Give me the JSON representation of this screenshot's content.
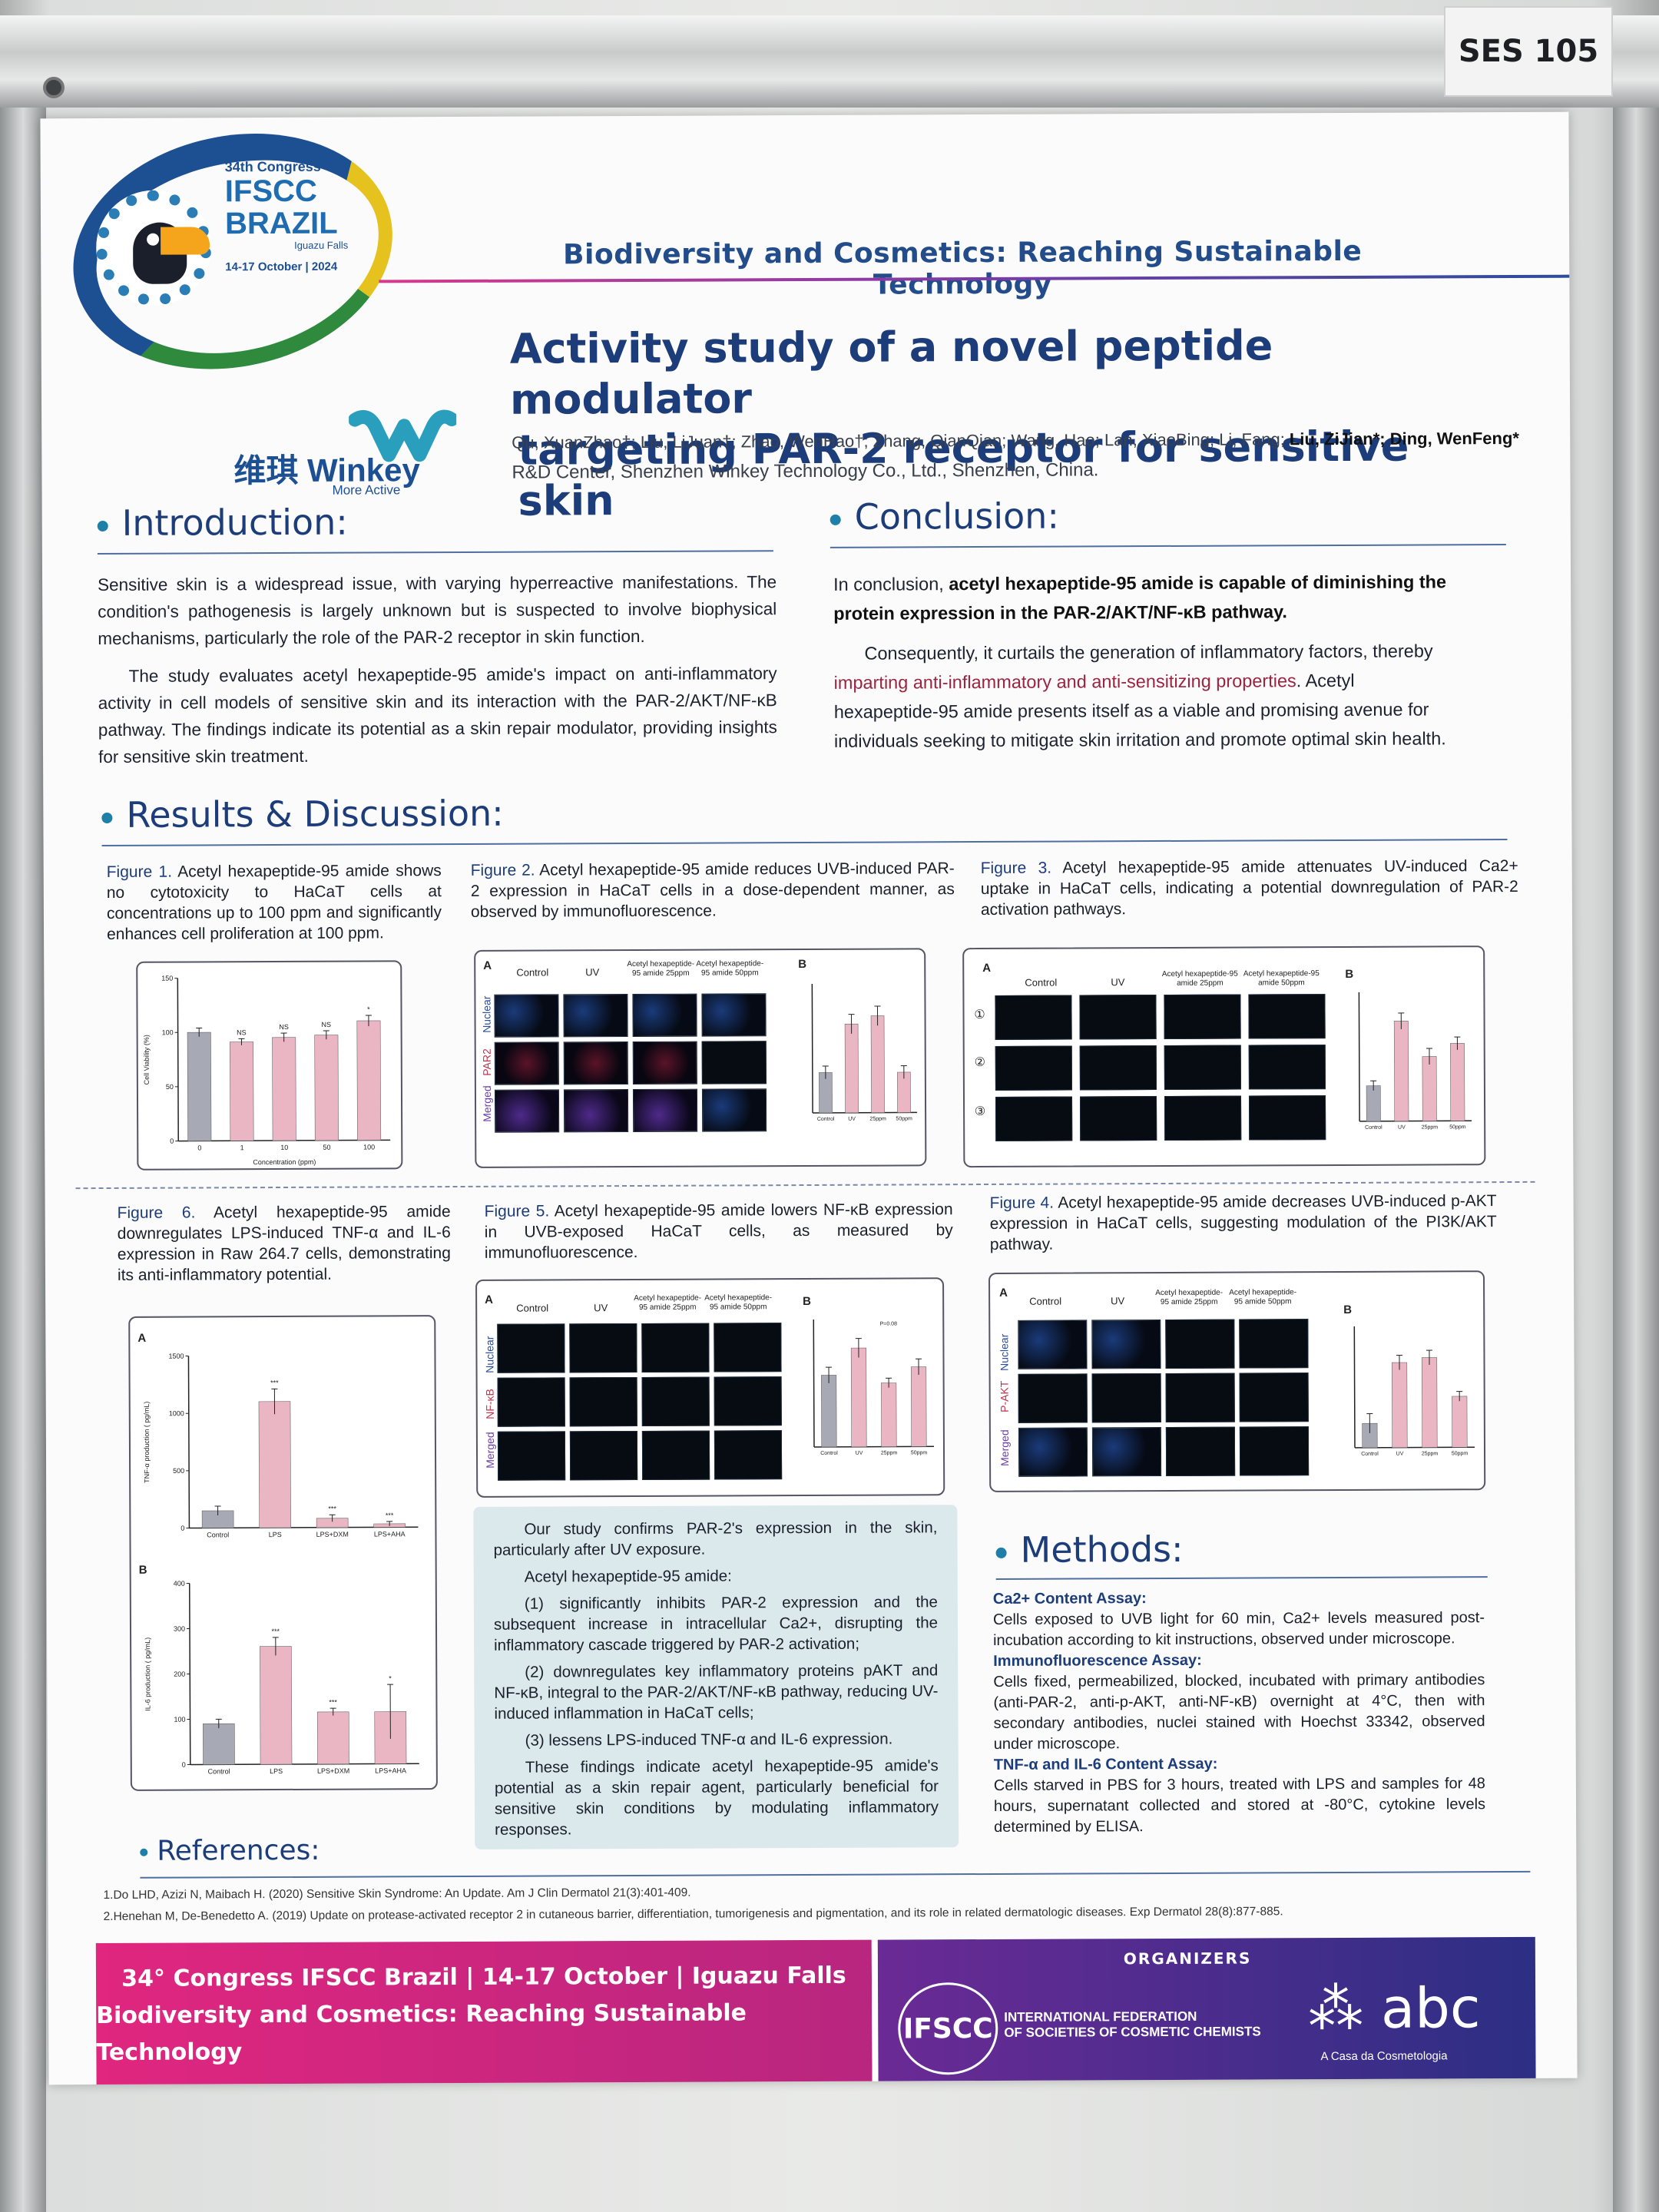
{
  "session_tag": "SES 105",
  "logo": {
    "congress": "34th Congress",
    "line1": "IFSCC",
    "line2": "BRAZIL",
    "city": "Iguazu Falls",
    "dates": "14-17 October | 2024"
  },
  "winkey": {
    "name": "维琪 Winkey",
    "tagline": "More Active"
  },
  "banner": "Biodiversity and Cosmetics: Reaching Sustainable Technology",
  "title_line1": "Activity study of a novel peptide modulator",
  "title_line2": "targeting PAR-2 receptor for sensitive skin",
  "authors_plain": "Qu, XuanZhao†; Liu, LiJuan†; Zhao, WenHao†; Zhang, QianQian; Wang, Hao; Lan, XiaoBing; Li, Fang; ",
  "authors_bold": "Liu, ZiJian*; Ding, WenFeng*",
  "affiliation": "R&D Center, Shenzhen Winkey Technology Co., Ltd., Shenzhen, China.",
  "introduction": {
    "heading": "Introduction:",
    "p1": "Sensitive skin is a widespread issue, with varying hyperreactive manifestations. The condition's pathogenesis is largely unknown but is suspected to involve biophysical mechanisms, particularly the role of the PAR-2 receptor in skin function.",
    "p2": "The study evaluates acetyl hexapeptide-95 amide's impact on anti-inflammatory activity in cell models of sensitive skin and its interaction with the PAR-2/AKT/NF-κB pathway. The findings indicate its potential as a skin repair modulator, providing insights for sensitive skin treatment."
  },
  "conclusion": {
    "heading": "Conclusion:",
    "p1_pre": "In conclusion, ",
    "p1_bold": "acetyl hexapeptide-95 amide is capable of diminishing the protein expression in the PAR-2/AKT/NF-κB pathway.",
    "p2_pre": "Consequently, it curtails the generation of inflammatory factors, thereby ",
    "p2_hl": "imparting anti-inflammatory and anti-sensitizing properties",
    "p2_post": ". Acetyl hexapeptide-95 amide presents itself as a viable and promising avenue for individuals seeking to mitigate skin irritation and promote optimal skin health."
  },
  "results_heading": "Results & Discussion:",
  "fig1": {
    "label": "Figure 1.",
    "caption": " Acetyl hexapeptide-95 amide shows no cytotoxicity to HaCaT cells at concentrations up to 100 ppm and significantly enhances cell proliferation at 100 ppm."
  },
  "fig2": {
    "label": "Figure 2.",
    "caption": " Acetyl hexapeptide-95 amide reduces UVB-induced PAR-2 expression in HaCaT cells in a dose-dependent manner, as observed by immunofluorescence."
  },
  "fig3": {
    "label": "Figure 3.",
    "caption": " Acetyl hexapeptide-95 amide attenuates UV-induced Ca2+ uptake in HaCaT cells, indicating a potential downregulation of PAR-2 activation pathways."
  },
  "fig4": {
    "label": "Figure 4.",
    "caption": " Acetyl hexapeptide-95 amide decreases UVB-induced p-AKT expression in HaCaT cells, suggesting modulation of the PI3K/AKT pathway."
  },
  "fig5": {
    "label": "Figure 5.",
    "caption": " Acetyl hexapeptide-95 amide lowers NF-κB expression in UVB-exposed HaCaT cells, as measured by immunofluorescence."
  },
  "fig6": {
    "label": "Figure 6.",
    "caption": " Acetyl hexapeptide-95 amide downregulates LPS-induced TNF-α and IL-6 expression in Raw 264.7 cells, demonstrating its anti-inflammatory potential."
  },
  "micro_labels": {
    "col_control": "Control",
    "col_uv": "UV",
    "col_25": "Acetyl hexapeptide-95 amide 25ppm",
    "col_50": "Acetyl hexapeptide-95 amide 50ppm",
    "nuclear": "Nuclear",
    "par2": "PAR2",
    "nfkb": "NF-κB",
    "pak": "P-AKT",
    "merged": "Merged",
    "A": "A",
    "B": "B",
    "r1": "①",
    "r2": "②",
    "r3": "③"
  },
  "chart_data": [
    {
      "id": "fig1",
      "type": "bar",
      "categories": [
        "0",
        "1",
        "10",
        "50",
        "100"
      ],
      "values": [
        100,
        91,
        95,
        97,
        110
      ],
      "errors": [
        4,
        3,
        4,
        4,
        5
      ],
      "sig": [
        "",
        "NS",
        "NS",
        "NS",
        "*"
      ],
      "xlabel": "Concentration (ppm)",
      "ylabel": "Cell Viability (%)",
      "ylim": [
        0,
        150
      ],
      "yticks": [
        0,
        50,
        100,
        150
      ]
    },
    {
      "id": "fig2b",
      "type": "bar",
      "categories": [
        "Control",
        "UV",
        "25ppm",
        "50ppm"
      ],
      "values": [
        25,
        55,
        60,
        25
      ],
      "errors": [
        4,
        6,
        6,
        4
      ],
      "ylim": [
        0,
        80
      ]
    },
    {
      "id": "fig3b",
      "type": "bar",
      "categories": [
        "Control",
        "UV",
        "25ppm",
        "50ppm"
      ],
      "values": [
        22,
        62,
        40,
        48
      ],
      "errors": [
        3,
        5,
        5,
        4
      ],
      "ylim": [
        0,
        80
      ]
    },
    {
      "id": "fig4b",
      "type": "bar",
      "categories": [
        "Control",
        "UV",
        "25ppm",
        "50ppm"
      ],
      "values": [
        20,
        70,
        74,
        42
      ],
      "errors": [
        8,
        6,
        6,
        4
      ],
      "ylim": [
        0,
        100
      ]
    },
    {
      "id": "fig5b",
      "type": "bar",
      "categories": [
        "Control",
        "UV",
        "25ppm",
        "50ppm"
      ],
      "values": [
        45,
        62,
        40,
        50
      ],
      "errors": [
        5,
        6,
        3,
        5
      ],
      "sig_text": "P=0.08",
      "ylim": [
        0,
        80
      ]
    },
    {
      "id": "fig6a",
      "type": "bar",
      "categories": [
        "Control",
        "LPS",
        "LPS+DXM",
        "LPS+AHA"
      ],
      "values": [
        150,
        1100,
        80,
        30
      ],
      "errors": [
        40,
        110,
        30,
        20
      ],
      "sig": [
        "",
        "***",
        "***",
        "***"
      ],
      "ylabel": "TNF-α production ( pg/mL)",
      "ylim": [
        0,
        1500
      ],
      "yticks": [
        0,
        500,
        1000,
        1500
      ]
    },
    {
      "id": "fig6b",
      "type": "bar",
      "categories": [
        "Control",
        "LPS",
        "LPS+DXM",
        "LPS+AHA"
      ],
      "values": [
        90,
        260,
        115,
        115
      ],
      "errors": [
        10,
        20,
        8,
        60
      ],
      "sig": [
        "",
        "***",
        "***",
        "*"
      ],
      "ylabel": "IL-6 production ( pg/mL)",
      "ylim": [
        0,
        400
      ],
      "yticks": [
        0,
        100,
        200,
        300,
        400
      ]
    }
  ],
  "summary": {
    "p1": "Our study confirms PAR-2's expression in the skin, particularly after UV exposure.",
    "p2": "Acetyl hexapeptide-95 amide:",
    "p3": "(1) significantly inhibits PAR-2 expression and the subsequent increase in intracellular Ca2+, disrupting the inflammatory cascade triggered by PAR-2 activation;",
    "p4": "(2) downregulates key inflammatory proteins pAKT and NF-κB, integral to the PAR-2/AKT/NF-κB pathway, reducing UV-induced inflammation in HaCaT cells;",
    "p5": "(3) lessens LPS-induced TNF-α and IL-6 expression.",
    "p6": "These findings indicate acetyl hexapeptide-95 amide's potential as a skin repair agent, particularly beneficial for sensitive skin conditions by modulating inflammatory responses."
  },
  "methods": {
    "heading": "Methods:",
    "h1": "Ca2+ Content Assay:",
    "t1": "Cells exposed to UVB light for 60 min, Ca2+ levels measured post-incubation according to kit instructions, observed under microscope.",
    "h2": "Immunofluorescence Assay:",
    "t2": "Cells fixed, permeabilized, blocked, incubated with primary antibodies (anti-PAR-2, anti-p-AKT, anti-NF-κB) overnight at 4°C, then with secondary antibodies, nuclei stained with Hoechst 33342, observed under microscope.",
    "h3": "TNF-α and IL-6 Content Assay:",
    "t3": "Cells starved in PBS for 3 hours, treated with LPS and samples for 48 hours, supernatant collected and stored at -80°C, cytokine levels determined by ELISA."
  },
  "references": {
    "heading": "References:",
    "r1": "1.Do LHD, Azizi N, Maibach H. (2020) Sensitive Skin Syndrome: An Update. Am J Clin Dermatol 21(3):401-409.",
    "r2": "2.Henehan M, De-Benedetto A. (2019) Update on protease-activated receptor 2 in cutaneous barrier, differentiation, tumorigenesis and pigmentation, and its role in related dermatologic diseases. Exp Dermatol 28(8):877-885."
  },
  "footer": {
    "line1": "34° Congress IFSCC Brazil | 14-17 October | Iguazu Falls",
    "line2": "Biodiversity and Cosmetics: Reaching Sustainable Technology",
    "organizers": "ORGANIZERS",
    "ifscc": "IFSCC",
    "ifscc_full1": "INTERNATIONAL FEDERATION",
    "ifscc_full2": "OF SOCIETIES OF COSMETIC CHEMISTS",
    "abc": "abc",
    "abc_sub": "A Casa da Cosmetologia"
  },
  "colors": {
    "bar_gray": "#a7a9b4",
    "bar_pink": "#eab6c4",
    "accent_blue": "#1d3d7a",
    "accent_pink": "#e0267f"
  }
}
